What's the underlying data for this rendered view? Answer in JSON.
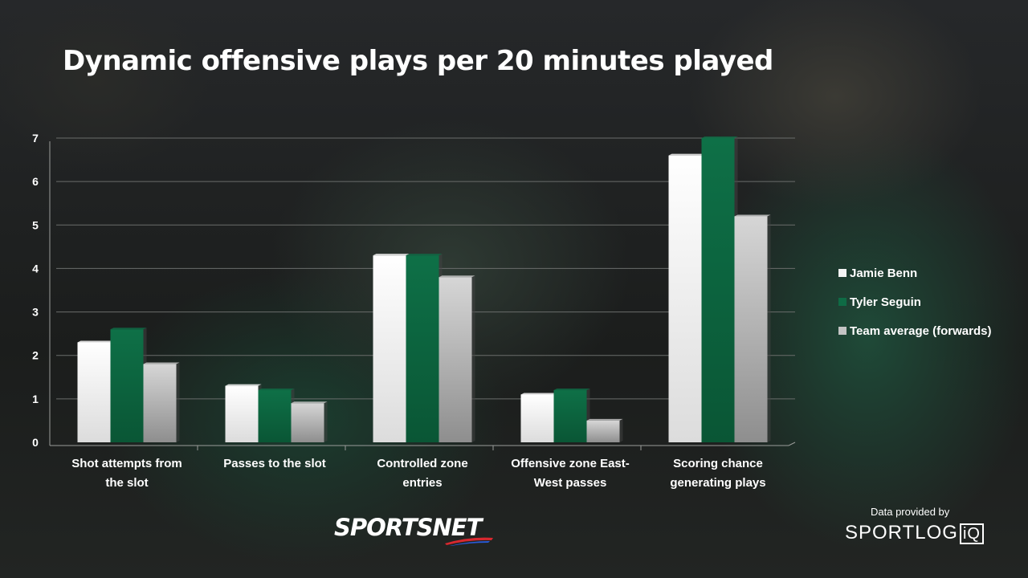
{
  "title": "Dynamic offensive plays per 20 minutes played",
  "branding": {
    "logo_text": "SPORTSNET",
    "credit_text": "Data provided by",
    "partner_text": "SPORTLOG",
    "partner_suffix": "iQ"
  },
  "colors": {
    "jamie_benn": "#f4f4f4",
    "tyler_seguin": "#0f6b45",
    "team_average": "#c4c4c4",
    "grid": "#6a6d6b",
    "text": "#ffffff"
  },
  "chart_data": {
    "type": "bar",
    "title": "Dynamic offensive plays per 20 minutes played",
    "xlabel": "",
    "ylabel": "",
    "ylim": [
      0,
      7
    ],
    "yticks": [
      "0",
      "1",
      "2",
      "3",
      "4",
      "5",
      "6",
      "7"
    ],
    "grid": true,
    "legend_position": "right",
    "categories": [
      [
        "Shot attempts from",
        "the slot"
      ],
      [
        "Passes to the slot"
      ],
      [
        "Controlled zone",
        "entries"
      ],
      [
        "Offensive zone East-",
        "West passes"
      ],
      [
        "Scoring chance",
        "generating plays"
      ]
    ],
    "series": [
      {
        "name": "Jamie Benn",
        "color": "#f4f4f4",
        "values": [
          2.3,
          1.3,
          4.3,
          1.1,
          6.6
        ]
      },
      {
        "name": "Tyler Seguin",
        "color": "#0f6b45",
        "values": [
          2.6,
          1.2,
          4.3,
          1.2,
          7.0
        ]
      },
      {
        "name": "Team average (forwards)",
        "color": "#c4c4c4",
        "values": [
          1.8,
          0.9,
          3.8,
          0.5,
          5.2
        ]
      }
    ]
  }
}
